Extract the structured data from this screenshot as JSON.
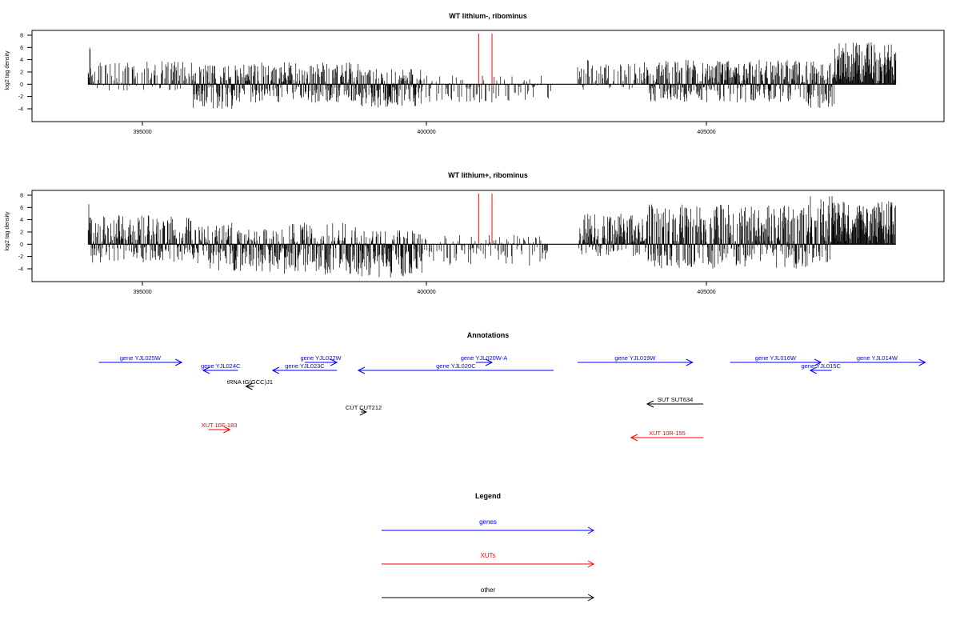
{
  "panels": [
    {
      "title": "WT lithium-, ribominus",
      "ylabel": "log2 tag density",
      "yticks": [
        "8",
        "6",
        "4",
        "2",
        "0",
        "-2",
        "-4"
      ],
      "xticks": [
        "395000",
        "400000",
        "405000"
      ]
    },
    {
      "title": "WT lithium+, ribominus",
      "ylabel": "log2 tag density",
      "yticks": [
        "8",
        "6",
        "4",
        "2",
        "0",
        "-2",
        "-4"
      ],
      "xticks": [
        "395000",
        "400000",
        "405000"
      ]
    }
  ],
  "annotations": {
    "title": "Annotations",
    "features": [
      {
        "label": "gene YJL025W",
        "color": "#0000ff",
        "start": 393850,
        "end": 395400,
        "strand": "+"
      },
      {
        "label": "gene YJL024C",
        "color": "#0000ff",
        "start": 395800,
        "end": 396450,
        "strand": "-"
      },
      {
        "label": "gene YJL023C",
        "color": "#0000ff",
        "start": 397100,
        "end": 398300,
        "strand": "-"
      },
      {
        "label": "gene YJL022W",
        "color": "#0000ff",
        "start": 397700,
        "end": 398300,
        "strand": "+"
      },
      {
        "label": "gene YJL020C",
        "color": "#0000ff",
        "start": 398700,
        "end": 402350,
        "strand": "-"
      },
      {
        "label": "gene YJL020W-A",
        "color": "#0000ff",
        "start": 400900,
        "end": 401200,
        "strand": "+"
      },
      {
        "label": "gene YJL019W",
        "color": "#0000ff",
        "start": 402800,
        "end": 404950,
        "strand": "+"
      },
      {
        "label": "gene YJL016W",
        "color": "#0000ff",
        "start": 405650,
        "end": 407350,
        "strand": "+"
      },
      {
        "label": "gene YJL015C",
        "color": "#0000ff",
        "start": 407150,
        "end": 407550,
        "strand": "-"
      },
      {
        "label": "gene YJL014W",
        "color": "#0000ff",
        "start": 407500,
        "end": 409300,
        "strand": "+"
      },
      {
        "label": "tRNA tG(GCC)J1",
        "color": "#000000",
        "start": 396600,
        "end": 396750,
        "strand": "-"
      },
      {
        "label": "CUT CUT212",
        "color": "#000000",
        "start": 398750,
        "end": 398850,
        "strand": "+"
      },
      {
        "label": "SUT SUT634",
        "color": "#000000",
        "start": 404100,
        "end": 405150,
        "strand": "-"
      },
      {
        "label": "XUT 10F-183",
        "color": "#ff0000",
        "start": 395900,
        "end": 396300,
        "strand": "+"
      },
      {
        "label": "XUT 10R-155",
        "color": "#ff0000",
        "start": 403800,
        "end": 405150,
        "strand": "-"
      }
    ]
  },
  "legend": {
    "title": "Legend",
    "items": [
      {
        "label": "genes",
        "color": "#0000ff"
      },
      {
        "label": "XUTs",
        "color": "#ff0000"
      },
      {
        "label": "other",
        "color": "#000000"
      }
    ]
  },
  "chart_data": [
    {
      "type": "bar",
      "title": "WT lithium-, ribominus",
      "xlabel": "",
      "ylabel": "log2 tag density",
      "xlim": [
        392600,
        409650
      ],
      "ylim": [
        -6,
        8.5
      ],
      "y_tick_values": [
        -4,
        -2,
        0,
        2,
        4,
        6,
        8
      ],
      "x_tick_values": [
        395000,
        400000,
        405000
      ],
      "grid": false,
      "marker_lines": {
        "color": "#ff0000",
        "x": [
          400950,
          401200
        ]
      },
      "density_profile": [
        {
          "x": [
            393650,
            393700
          ],
          "range": [
            0,
            7
          ]
        },
        {
          "x": [
            393700,
            395600
          ],
          "range": [
            -1,
            3.8
          ]
        },
        {
          "x": [
            395600,
            396400
          ],
          "range": [
            -4,
            3.2
          ]
        },
        {
          "x": [
            396400,
            398700
          ],
          "range": [
            -3,
            3.6
          ]
        },
        {
          "x": [
            398700,
            399900
          ],
          "range": [
            -3.8,
            2.5
          ]
        },
        {
          "x": [
            399900,
            402300
          ],
          "range": [
            -3,
            1.5
          ]
        },
        {
          "x": [
            402800,
            404100
          ],
          "range": [
            -1,
            4
          ]
        },
        {
          "x": [
            404100,
            407100
          ],
          "range": [
            -3,
            4
          ]
        },
        {
          "x": [
            407100,
            407600
          ],
          "range": [
            -4,
            3.8
          ]
        },
        {
          "x": [
            407600,
            408750
          ],
          "range": [
            0,
            6.8
          ]
        }
      ]
    },
    {
      "type": "bar",
      "title": "WT lithium+, ribominus",
      "xlabel": "",
      "ylabel": "log2 tag density",
      "xlim": [
        392600,
        409650
      ],
      "ylim": [
        -6,
        8.5
      ],
      "y_tick_values": [
        -4,
        -2,
        0,
        2,
        4,
        6,
        8
      ],
      "x_tick_values": [
        395000,
        400000,
        405000
      ],
      "grid": false,
      "marker_lines": {
        "color": "#ff0000",
        "x": [
          400950,
          401200
        ]
      },
      "density_profile": [
        {
          "x": [
            393650,
            393700
          ],
          "range": [
            0,
            7
          ]
        },
        {
          "x": [
            393700,
            395600
          ],
          "range": [
            -3,
            4.8
          ]
        },
        {
          "x": [
            395600,
            396400
          ],
          "range": [
            -4.5,
            3.5
          ]
        },
        {
          "x": [
            396400,
            397300
          ],
          "range": [
            -4.5,
            2.5
          ]
        },
        {
          "x": [
            397300,
            398700
          ],
          "range": [
            -5,
            3.5
          ]
        },
        {
          "x": [
            398700,
            399900
          ],
          "range": [
            -5.5,
            2.5
          ]
        },
        {
          "x": [
            399900,
            402300
          ],
          "range": [
            -3.5,
            1.5
          ]
        },
        {
          "x": [
            402800,
            404100
          ],
          "range": [
            -2,
            5
          ]
        },
        {
          "x": [
            404100,
            407100
          ],
          "range": [
            -4,
            6.5
          ]
        },
        {
          "x": [
            407100,
            407600
          ],
          "range": [
            -3,
            8
          ]
        },
        {
          "x": [
            407600,
            408750
          ],
          "range": [
            0,
            7
          ]
        }
      ]
    }
  ]
}
